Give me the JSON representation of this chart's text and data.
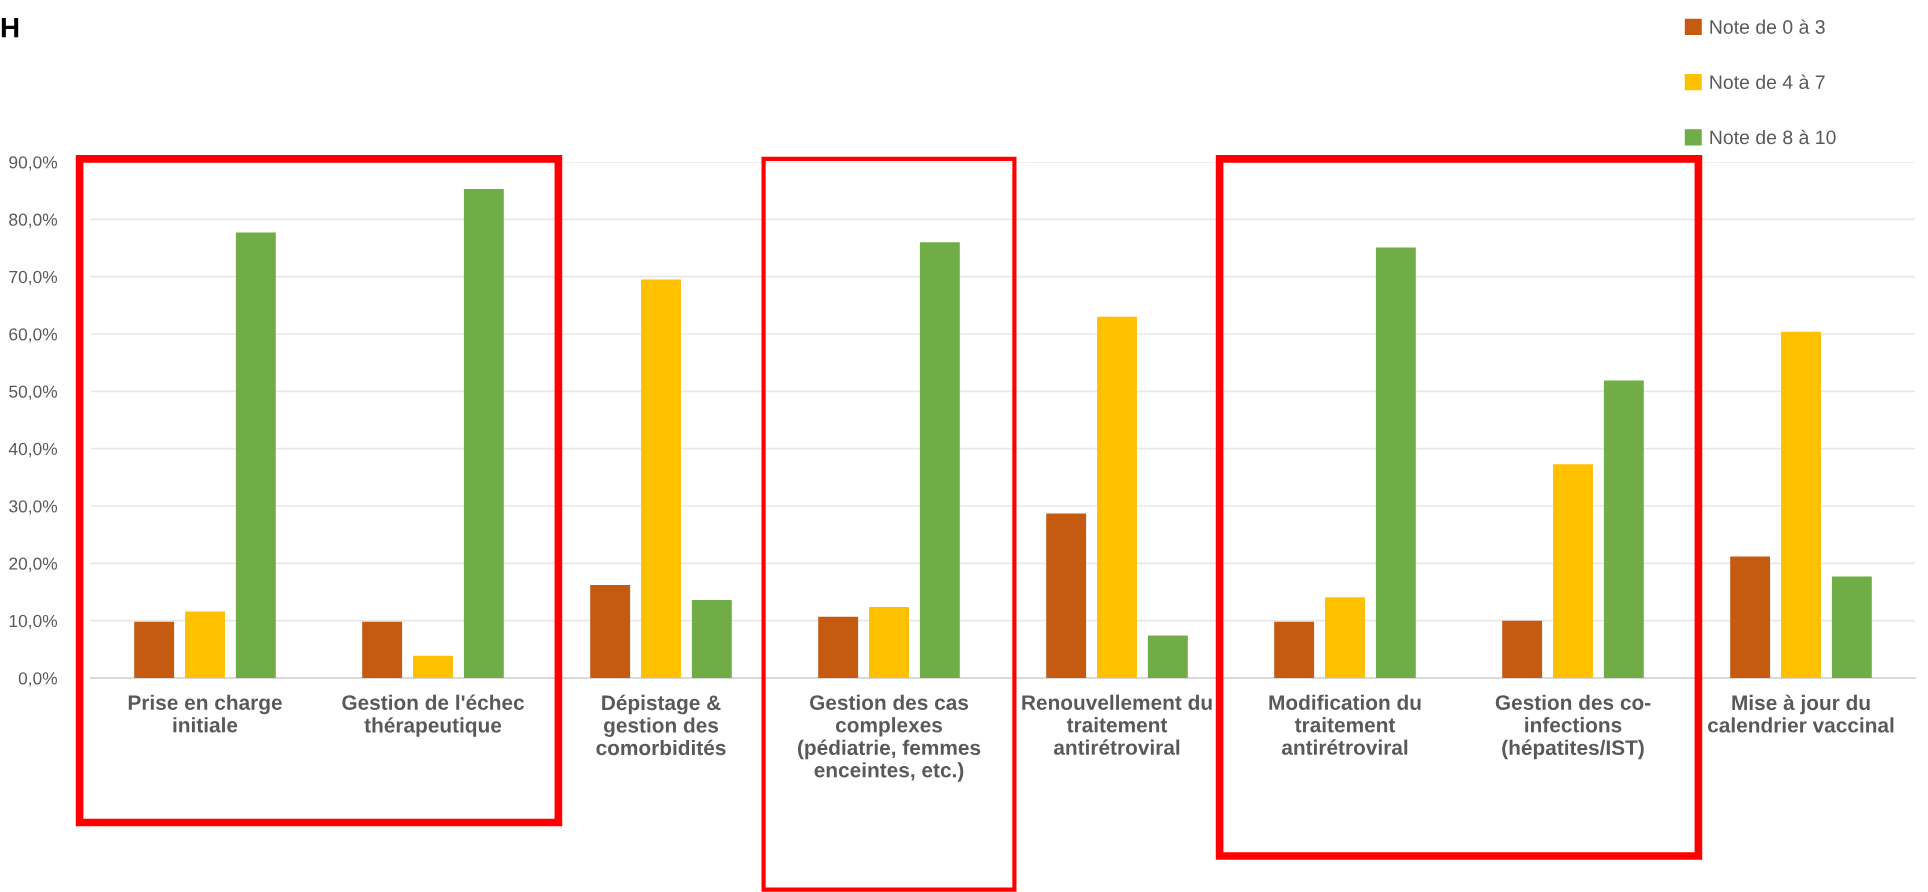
{
  "chart_data": {
    "type": "bar",
    "title": "H",
    "categories": [
      "Prise en charge\ninitiale",
      "Gestion de l'échec\nthérapeutique",
      "Dépistage &\ngestion des\ncomorbidités",
      "Gestion des cas\ncomplexes\n(pédiatrie, femmes\nenceintes, etc.)",
      "Renouvellement du\ntraitement\nantirétroviral",
      "Modification du\ntraitement\nantirétroviral",
      "Gestion des co-\ninfections\n(hépatites/IST)",
      "Mise à jour du\ncalendrier vaccinal"
    ],
    "series": [
      {
        "name": "Note de 0 à 3",
        "color": "#c55a11",
        "values": [
          9.8,
          9.8,
          16.2,
          10.7,
          28.7,
          9.8,
          10.0,
          21.2
        ]
      },
      {
        "name": "Note de 4 à 7",
        "color": "#ffc000",
        "values": [
          11.6,
          3.9,
          69.5,
          12.4,
          63.0,
          14.1,
          37.3,
          60.4
        ]
      },
      {
        "name": "Note de 8 à 10",
        "color": "#70ad47",
        "values": [
          77.7,
          85.3,
          13.6,
          76.0,
          7.4,
          75.1,
          51.9,
          17.7
        ]
      }
    ],
    "ylim": [
      0,
      90
    ],
    "yticks": [
      {
        "value": 0,
        "label": "0,0%"
      },
      {
        "value": 10,
        "label": "10,0%"
      },
      {
        "value": 20,
        "label": "20,0%"
      },
      {
        "value": 30,
        "label": "30,0%"
      },
      {
        "value": 40,
        "label": "40,0%"
      },
      {
        "value": 50,
        "label": "50,0%"
      },
      {
        "value": 60,
        "label": "60,0%"
      },
      {
        "value": 70,
        "label": "70,0%"
      },
      {
        "value": 80,
        "label": "80,0%"
      },
      {
        "value": 90,
        "label": "90,0%"
      }
    ],
    "grid": "y",
    "legend": "top right"
  }
}
